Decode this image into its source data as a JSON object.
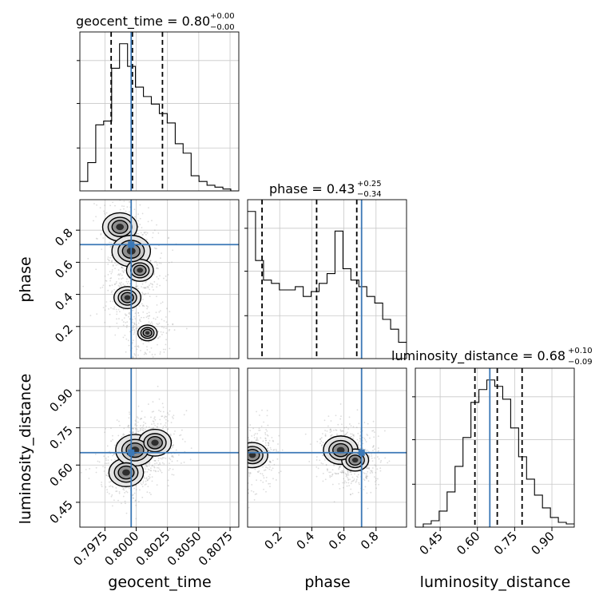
{
  "chart_data": {
    "type": "corner",
    "parameters": [
      "geocent_time",
      "phase",
      "luminosity_distance"
    ],
    "truths": {
      "geocent_time": 0.7996,
      "phase": 0.71,
      "luminosity_distance": 0.65
    },
    "titles": [
      {
        "main": "geocent_time = 0.80",
        "sup": "+0.00",
        "sub": "−0.00"
      },
      {
        "main": "phase = 0.43",
        "sup": "+0.25",
        "sub": "−0.34"
      },
      {
        "main": "luminosity_distance = 0.68",
        "sup": "+0.10",
        "sub": "−0.09"
      }
    ],
    "axes": {
      "geocent_time": {
        "range": [
          0.7955,
          0.8082
        ],
        "ticks": [
          "0.7975",
          "0.8000",
          "0.8025",
          "0.8050",
          "0.8075"
        ]
      },
      "phase": {
        "range": [
          0.0,
          0.99
        ],
        "ticks": [
          "0.2",
          "0.4",
          "0.6",
          "0.8"
        ]
      },
      "luminosity_distance": {
        "range": [
          0.35,
          0.99
        ],
        "ticks": [
          "0.45",
          "0.60",
          "0.75",
          "0.90"
        ]
      }
    },
    "histograms": {
      "geocent_time": {
        "bin_edges": [
          0.7955,
          0.79613,
          0.79677,
          0.7974,
          0.79804,
          0.79867,
          0.79931,
          0.79994,
          0.80058,
          0.80121,
          0.80185,
          0.80248,
          0.80312,
          0.80375,
          0.80439,
          0.80502,
          0.80566,
          0.80629,
          0.80693,
          0.80756,
          0.8082
        ],
        "counts": [
          0.05,
          0.15,
          0.35,
          0.37,
          0.65,
          0.78,
          0.66,
          0.55,
          0.5,
          0.46,
          0.41,
          0.36,
          0.25,
          0.2,
          0.08,
          0.05,
          0.03,
          0.02,
          0.01,
          0.0
        ],
        "quantiles": [
          0.798,
          0.7997,
          0.8021
        ]
      },
      "phase": {
        "bin_edges": [
          0.0,
          0.0495,
          0.099,
          0.1485,
          0.198,
          0.2475,
          0.297,
          0.3465,
          0.396,
          0.4455,
          0.495,
          0.5445,
          0.594,
          0.6435,
          0.693,
          0.7425,
          0.792,
          0.8415,
          0.891,
          0.9405,
          0.99
        ],
        "counts": [
          0.9,
          0.6,
          0.48,
          0.46,
          0.42,
          0.42,
          0.44,
          0.38,
          0.41,
          0.46,
          0.52,
          0.78,
          0.55,
          0.48,
          0.44,
          0.38,
          0.34,
          0.24,
          0.18,
          0.1
        ],
        "quantiles": [
          0.09,
          0.43,
          0.68
        ]
      },
      "luminosity_distance": {
        "bin_edges": [
          0.35,
          0.382,
          0.414,
          0.446,
          0.478,
          0.51,
          0.542,
          0.574,
          0.606,
          0.638,
          0.67,
          0.702,
          0.734,
          0.766,
          0.798,
          0.83,
          0.862,
          0.894,
          0.926,
          0.958,
          0.99
        ],
        "counts": [
          0.0,
          0.02,
          0.04,
          0.1,
          0.22,
          0.38,
          0.56,
          0.78,
          0.86,
          0.92,
          0.88,
          0.8,
          0.62,
          0.44,
          0.3,
          0.2,
          0.12,
          0.06,
          0.03,
          0.02
        ],
        "quantiles": [
          0.59,
          0.68,
          0.78
        ]
      }
    },
    "contours_2d": [
      {
        "x_param": "geocent_time",
        "y_param": "phase",
        "peak_regions": [
          {
            "x": 0.7987,
            "y": 0.82,
            "weight": 0.9
          },
          {
            "x": 0.7996,
            "y": 0.67,
            "weight": 1.0
          },
          {
            "x": 0.8003,
            "y": 0.55,
            "weight": 0.7
          },
          {
            "x": 0.7993,
            "y": 0.38,
            "weight": 0.7
          },
          {
            "x": 0.8009,
            "y": 0.16,
            "weight": 0.5
          }
        ]
      },
      {
        "x_param": "geocent_time",
        "y_param": "luminosity_distance",
        "peak_regions": [
          {
            "x": 0.7992,
            "y": 0.57,
            "weight": 0.9
          },
          {
            "x": 0.7999,
            "y": 0.66,
            "weight": 1.0
          },
          {
            "x": 0.8015,
            "y": 0.69,
            "weight": 0.85
          }
        ]
      },
      {
        "x_param": "phase",
        "y_param": "luminosity_distance",
        "peak_regions": [
          {
            "x": 0.03,
            "y": 0.64,
            "weight": 0.8
          },
          {
            "x": 0.58,
            "y": 0.66,
            "weight": 0.9
          },
          {
            "x": 0.67,
            "y": 0.62,
            "weight": 0.7
          }
        ]
      }
    ],
    "xlabels": [
      "geocent_time",
      "phase",
      "luminosity_distance"
    ],
    "ylabels": [
      "phase",
      "luminosity_distance"
    ],
    "grid": true
  }
}
